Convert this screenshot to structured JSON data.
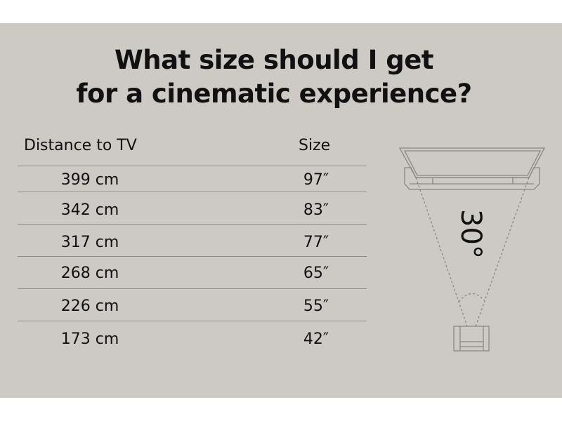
{
  "title_lines": [
    "What size should I get",
    "for a cinematic experience?"
  ],
  "table": {
    "headers": [
      "Distance to TV",
      "Size"
    ],
    "rows": [
      {
        "distance": "399 cm",
        "size": "97″"
      },
      {
        "distance": "342 cm",
        "size": "83″"
      },
      {
        "distance": "317 cm",
        "size": "77″"
      },
      {
        "distance": "268 cm",
        "size": "65″"
      },
      {
        "distance": "226 cm",
        "size": "55″"
      },
      {
        "distance": "173 cm",
        "size": "42″"
      }
    ]
  },
  "diagram": {
    "angle_label": "30°"
  },
  "colors": {
    "background": "#cdcac5",
    "text": "#111111",
    "line": "#8e8b87"
  }
}
